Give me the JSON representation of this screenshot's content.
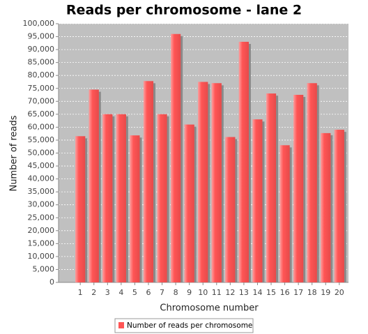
{
  "chart_data": {
    "type": "bar",
    "title": "Reads per chromosome - lane 2",
    "x_label": "Chromosome number",
    "y_label": "Number of reads",
    "categories": [
      "1",
      "2",
      "3",
      "4",
      "5",
      "6",
      "7",
      "8",
      "9",
      "10",
      "11",
      "12",
      "13",
      "14",
      "15",
      "16",
      "17",
      "18",
      "19",
      "20"
    ],
    "series": [
      {
        "name": "Number of reads per chromosome",
        "color": "#ff5555",
        "values": [
          56500,
          74500,
          65000,
          65000,
          56800,
          77800,
          65000,
          96000,
          61000,
          77500,
          77000,
          56200,
          93000,
          63000,
          73000,
          53000,
          72500,
          77000,
          57700,
          59000
        ]
      }
    ],
    "ylim": [
      0,
      100000
    ],
    "yticks": [
      0,
      {
        "value": 5000,
        "label": "5,000"
      },
      {
        "value": 10000,
        "label": "10,000"
      },
      {
        "value": 15000,
        "label": "15,000"
      },
      {
        "value": 20000,
        "label": "20,000"
      },
      {
        "value": 25000,
        "label": "25,000"
      },
      {
        "value": 30000,
        "label": "30,000"
      },
      {
        "value": 35000,
        "label": "35,000"
      },
      {
        "value": 40000,
        "label": "40,000"
      },
      {
        "value": 45000,
        "label": "45,000"
      },
      {
        "value": 50000,
        "label": "50,000"
      },
      {
        "value": 55000,
        "label": "55,000"
      },
      {
        "value": 60000,
        "label": "60,000"
      },
      {
        "value": 65000,
        "label": "65,000"
      },
      {
        "value": 70000,
        "label": "70,000"
      },
      {
        "value": 75000,
        "label": "75,000"
      },
      {
        "value": 80000,
        "label": "80,000"
      },
      {
        "value": 85000,
        "label": "85,000"
      },
      {
        "value": 90000,
        "label": "90,000"
      },
      {
        "value": 95000,
        "label": "95,000"
      },
      {
        "value": 100000,
        "label": "100,000"
      }
    ],
    "grid": true
  }
}
